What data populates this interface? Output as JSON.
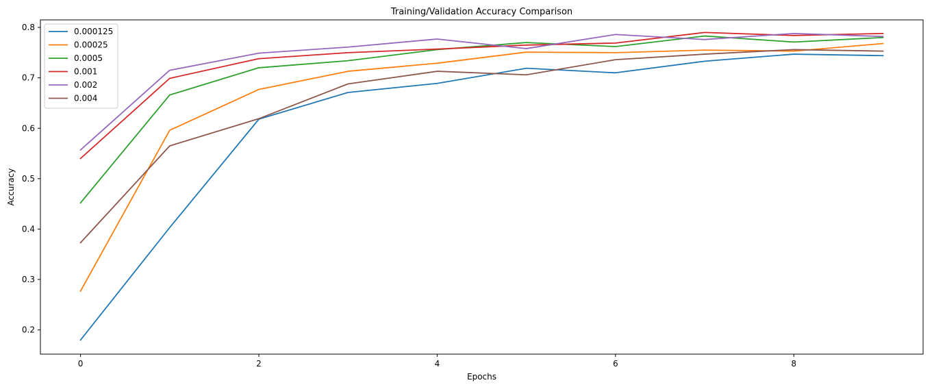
{
  "chart_data": {
    "type": "line",
    "title": "Training/Validation Accuracy Comparison",
    "xlabel": "Epochs",
    "ylabel": "Accuracy",
    "x": [
      0,
      1,
      2,
      3,
      4,
      5,
      6,
      7,
      8,
      9
    ],
    "xlim": [
      -0.45,
      9.45
    ],
    "ylim": [
      0.152,
      0.815
    ],
    "xticks": [
      0,
      2,
      4,
      6,
      8
    ],
    "yticks": [
      0.2,
      0.3,
      0.4,
      0.5,
      0.6,
      0.7,
      0.8
    ],
    "grid": false,
    "legend_position": "top-left",
    "series": [
      {
        "name": "0.000125",
        "color": "#1f77b4",
        "values": [
          0.18,
          0.403,
          0.618,
          0.671,
          0.689,
          0.719,
          0.71,
          0.733,
          0.747,
          0.744
        ]
      },
      {
        "name": "0.00025",
        "color": "#ff7f0e",
        "values": [
          0.277,
          0.596,
          0.677,
          0.713,
          0.729,
          0.751,
          0.75,
          0.755,
          0.753,
          0.768
        ]
      },
      {
        "name": "0.0005",
        "color": "#2ca02c",
        "values": [
          0.452,
          0.666,
          0.72,
          0.734,
          0.756,
          0.77,
          0.762,
          0.783,
          0.771,
          0.78
        ]
      },
      {
        "name": "0.001",
        "color": "#d62728",
        "values": [
          0.54,
          0.699,
          0.738,
          0.75,
          0.757,
          0.765,
          0.769,
          0.79,
          0.784,
          0.788
        ]
      },
      {
        "name": "0.002",
        "color": "#9467bd",
        "values": [
          0.557,
          0.715,
          0.749,
          0.761,
          0.777,
          0.758,
          0.786,
          0.776,
          0.788,
          0.782
        ]
      },
      {
        "name": "0.004",
        "color": "#8c564b",
        "values": [
          0.373,
          0.565,
          0.619,
          0.688,
          0.713,
          0.706,
          0.736,
          0.747,
          0.756,
          0.753
        ]
      }
    ]
  }
}
